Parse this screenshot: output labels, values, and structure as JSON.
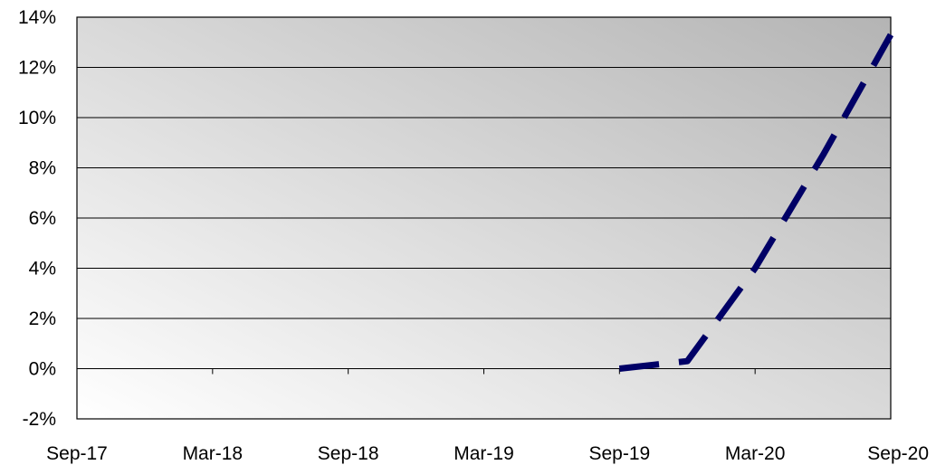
{
  "chart_data": {
    "type": "line",
    "title": "",
    "xlabel": "",
    "ylabel": "",
    "x_ticks": [
      "Sep-17",
      "Mar-18",
      "Sep-18",
      "Mar-19",
      "Sep-19",
      "Mar-20",
      "Sep-20"
    ],
    "y_ticks": [
      "-2%",
      "0%",
      "2%",
      "4%",
      "6%",
      "8%",
      "10%",
      "12%",
      "14%"
    ],
    "ylim": [
      -2,
      14
    ],
    "xlim": [
      "Sep-17",
      "Sep-20"
    ],
    "grid": {
      "horizontal": true,
      "vertical": false
    },
    "legend": "none",
    "series": [
      {
        "line_style": "dashed",
        "color": "#000066",
        "points": [
          {
            "x": "Sep-19",
            "y": 0.0
          },
          {
            "x": "Dec-19",
            "y": 0.3
          },
          {
            "x": "Mar-20",
            "y": 4.0
          },
          {
            "x": "Jun-20",
            "y": 8.5
          },
          {
            "x": "Sep-20",
            "y": 13.3
          }
        ]
      }
    ]
  },
  "colors": {
    "plot_bg_light": "#ffffff",
    "plot_bg_dark": "#b4b4b4",
    "gridline": "#000000",
    "axis": "#000000"
  }
}
